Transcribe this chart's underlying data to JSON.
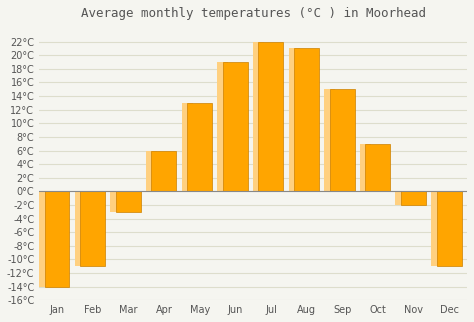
{
  "title": "Average monthly temperatures (°C ) in Moorhead",
  "months": [
    "Jan",
    "Feb",
    "Mar",
    "Apr",
    "May",
    "Jun",
    "Jul",
    "Aug",
    "Sep",
    "Oct",
    "Nov",
    "Dec"
  ],
  "values": [
    -14,
    -11,
    -3,
    6,
    13,
    19,
    22,
    21,
    15,
    7,
    -2,
    -11
  ],
  "bar_color_positive": "#FFA500",
  "bar_color_negative": "#FFA500",
  "bar_edge_color": "#CC8000",
  "ylim": [
    -16,
    24
  ],
  "yticks": [
    -16,
    -14,
    -12,
    -10,
    -8,
    -6,
    -4,
    -2,
    0,
    2,
    4,
    6,
    8,
    10,
    12,
    14,
    16,
    18,
    20,
    22
  ],
  "background_color": "#f5f5f0",
  "grid_color": "#ddddcc",
  "title_fontsize": 9,
  "axis_fontsize": 7.5,
  "tick_fontsize": 7
}
